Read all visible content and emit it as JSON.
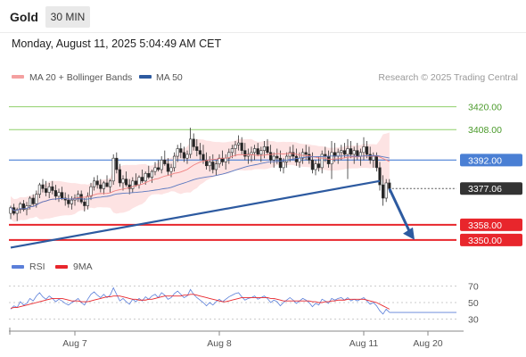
{
  "header": {
    "symbol": "Gold",
    "interval": "30 MIN",
    "datetime": "Monday, August 11, 2025 5:04:49 AM CET"
  },
  "legend": {
    "items": [
      {
        "label": "MA 20 + Bollinger Bands",
        "color": "#f4a0a0"
      },
      {
        "label": "MA 50",
        "color": "#2d5aa0"
      }
    ],
    "credit": "Research © 2025 Trading Central"
  },
  "colors": {
    "up": "#ffffff",
    "down": "#222222",
    "candle_outline": "#333333",
    "bollinger_fill": "#fde3e3",
    "ma20": "#f08080",
    "ma50": "#5a78c0",
    "trendline": "#2d5aa0",
    "resistance": "#8fcf6a",
    "pivot": "#4a7fd4",
    "support": "#e8262c",
    "arrow": "#2d5aa0",
    "rsi": "#5b7fd9",
    "rsi_ma": "#e8262c"
  },
  "chart_data": [
    {
      "type": "candlestick",
      "title": "Gold",
      "interval": "30 MIN",
      "ylim": [
        3342,
        3432
      ],
      "x_ticks": [
        {
          "label": "Aug 7",
          "index": 20
        },
        {
          "label": "Aug 8",
          "index": 65
        },
        {
          "label": "Aug 11",
          "index": 110
        },
        {
          "label": "Aug 20",
          "index": 130
        }
      ],
      "price_levels": [
        {
          "value": 3420.0,
          "label": "3420.00",
          "kind": "resistance"
        },
        {
          "value": 3408.0,
          "label": "3408.00",
          "kind": "resistance"
        },
        {
          "value": 3392.0,
          "label": "3392.00",
          "kind": "pivot"
        },
        {
          "value": 3377.06,
          "label": "3377.06",
          "kind": "last"
        },
        {
          "value": 3358.0,
          "label": "3358.00",
          "kind": "support"
        },
        {
          "value": 3350.0,
          "label": "3350.00",
          "kind": "support"
        }
      ],
      "trendline": {
        "from": {
          "index": 0,
          "value": 3346
        },
        "to": {
          "index": 115,
          "value": 3381
        }
      },
      "forecast_arrow": {
        "from": {
          "index": 118,
          "value": 3377
        },
        "to": {
          "index": 125,
          "value": 3351
        }
      },
      "candles": [
        [
          3364,
          3368,
          3361,
          3367
        ],
        [
          3367,
          3369,
          3363,
          3364
        ],
        [
          3364,
          3367,
          3360,
          3366
        ],
        [
          3366,
          3370,
          3364,
          3369
        ],
        [
          3369,
          3371,
          3365,
          3366
        ],
        [
          3366,
          3370,
          3363,
          3368
        ],
        [
          3368,
          3373,
          3366,
          3372
        ],
        [
          3372,
          3374,
          3368,
          3369
        ],
        [
          3369,
          3376,
          3367,
          3374
        ],
        [
          3374,
          3380,
          3372,
          3379
        ],
        [
          3379,
          3382,
          3375,
          3377
        ],
        [
          3377,
          3381,
          3373,
          3375
        ],
        [
          3375,
          3380,
          3372,
          3378
        ],
        [
          3378,
          3381,
          3374,
          3376
        ],
        [
          3376,
          3379,
          3371,
          3373
        ],
        [
          3373,
          3377,
          3370,
          3375
        ],
        [
          3375,
          3378,
          3371,
          3372
        ],
        [
          3372,
          3375,
          3368,
          3371
        ],
        [
          3371,
          3374,
          3367,
          3369
        ],
        [
          3369,
          3373,
          3366,
          3371
        ],
        [
          3371,
          3374,
          3368,
          3372
        ],
        [
          3372,
          3376,
          3370,
          3374
        ],
        [
          3374,
          3376,
          3369,
          3370
        ],
        [
          3370,
          3372,
          3365,
          3368
        ],
        [
          3368,
          3375,
          3366,
          3373
        ],
        [
          3373,
          3380,
          3371,
          3378
        ],
        [
          3378,
          3383,
          3376,
          3381
        ],
        [
          3381,
          3384,
          3377,
          3379
        ],
        [
          3379,
          3382,
          3375,
          3377
        ],
        [
          3377,
          3381,
          3374,
          3380
        ],
        [
          3380,
          3384,
          3378,
          3378
        ],
        [
          3378,
          3382,
          3375,
          3381
        ],
        [
          3381,
          3395,
          3379,
          3393
        ],
        [
          3393,
          3396,
          3385,
          3387
        ],
        [
          3387,
          3390,
          3378,
          3380
        ],
        [
          3380,
          3384,
          3376,
          3382
        ],
        [
          3382,
          3386,
          3378,
          3379
        ],
        [
          3379,
          3382,
          3374,
          3377
        ],
        [
          3377,
          3383,
          3375,
          3381
        ],
        [
          3381,
          3385,
          3378,
          3379
        ],
        [
          3379,
          3384,
          3377,
          3383
        ],
        [
          3383,
          3387,
          3380,
          3381
        ],
        [
          3381,
          3386,
          3379,
          3385
        ],
        [
          3385,
          3389,
          3382,
          3383
        ],
        [
          3383,
          3387,
          3380,
          3386
        ],
        [
          3386,
          3391,
          3384,
          3388
        ],
        [
          3388,
          3392,
          3386,
          3387
        ],
        [
          3387,
          3394,
          3385,
          3392
        ],
        [
          3392,
          3397,
          3389,
          3390
        ],
        [
          3390,
          3393,
          3384,
          3386
        ],
        [
          3386,
          3390,
          3383,
          3388
        ],
        [
          3388,
          3396,
          3386,
          3394
        ],
        [
          3394,
          3400,
          3391,
          3398
        ],
        [
          3398,
          3401,
          3393,
          3396
        ],
        [
          3396,
          3399,
          3391,
          3393
        ],
        [
          3393,
          3397,
          3390,
          3395
        ],
        [
          3395,
          3409,
          3393,
          3403
        ],
        [
          3403,
          3406,
          3397,
          3399
        ],
        [
          3399,
          3403,
          3394,
          3397
        ],
        [
          3397,
          3401,
          3392,
          3395
        ],
        [
          3395,
          3400,
          3390,
          3392
        ],
        [
          3392,
          3396,
          3387,
          3389
        ],
        [
          3389,
          3394,
          3386,
          3391
        ],
        [
          3391,
          3395,
          3385,
          3387
        ],
        [
          3387,
          3392,
          3384,
          3390
        ],
        [
          3390,
          3395,
          3388,
          3393
        ],
        [
          3393,
          3397,
          3389,
          3391
        ],
        [
          3391,
          3395,
          3387,
          3393
        ],
        [
          3393,
          3398,
          3390,
          3396
        ],
        [
          3396,
          3400,
          3393,
          3398
        ],
        [
          3398,
          3402,
          3394,
          3400
        ],
        [
          3400,
          3405,
          3397,
          3401
        ],
        [
          3401,
          3404,
          3395,
          3397
        ],
        [
          3397,
          3401,
          3392,
          3394
        ],
        [
          3394,
          3398,
          3390,
          3395
        ],
        [
          3395,
          3399,
          3391,
          3396
        ],
        [
          3396,
          3400,
          3392,
          3398
        ],
        [
          3398,
          3401,
          3394,
          3395
        ],
        [
          3395,
          3399,
          3391,
          3397
        ],
        [
          3397,
          3402,
          3393,
          3399
        ],
        [
          3399,
          3403,
          3395,
          3396
        ],
        [
          3396,
          3400,
          3390,
          3392
        ],
        [
          3392,
          3396,
          3388,
          3394
        ],
        [
          3394,
          3398,
          3390,
          3393
        ],
        [
          3393,
          3397,
          3386,
          3388
        ],
        [
          3388,
          3393,
          3385,
          3391
        ],
        [
          3391,
          3396,
          3388,
          3394
        ],
        [
          3394,
          3399,
          3391,
          3396
        ],
        [
          3396,
          3400,
          3392,
          3394
        ],
        [
          3394,
          3398,
          3389,
          3391
        ],
        [
          3391,
          3396,
          3388,
          3393
        ],
        [
          3393,
          3398,
          3390,
          3396
        ],
        [
          3396,
          3400,
          3392,
          3395
        ],
        [
          3395,
          3399,
          3390,
          3392
        ],
        [
          3392,
          3396,
          3385,
          3387
        ],
        [
          3387,
          3392,
          3384,
          3390
        ],
        [
          3390,
          3394,
          3386,
          3388
        ],
        [
          3388,
          3397,
          3385,
          3395
        ],
        [
          3395,
          3399,
          3391,
          3394
        ],
        [
          3394,
          3397,
          3388,
          3390
        ],
        [
          3390,
          3402,
          3382,
          3396
        ],
        [
          3396,
          3401,
          3391,
          3394
        ],
        [
          3394,
          3398,
          3390,
          3396
        ],
        [
          3396,
          3400,
          3392,
          3397
        ],
        [
          3397,
          3401,
          3393,
          3395
        ],
        [
          3395,
          3403,
          3382,
          3398
        ],
        [
          3398,
          3402,
          3393,
          3395
        ],
        [
          3395,
          3399,
          3390,
          3397
        ],
        [
          3397,
          3401,
          3392,
          3394
        ],
        [
          3394,
          3398,
          3389,
          3396
        ],
        [
          3396,
          3404,
          3392,
          3399
        ],
        [
          3399,
          3402,
          3393,
          3395
        ],
        [
          3395,
          3399,
          3390,
          3392
        ],
        [
          3392,
          3396,
          3388,
          3394
        ],
        [
          3394,
          3396,
          3386,
          3388
        ],
        [
          3388,
          3391,
          3376,
          3379
        ],
        [
          3379,
          3384,
          3368,
          3372
        ],
        [
          3372,
          3382,
          3370,
          3380
        ],
        [
          3380,
          3382,
          3375,
          3377
        ]
      ]
    },
    {
      "type": "line",
      "title": "RSI",
      "ylim": [
        25,
        75
      ],
      "y_ticks": [
        70,
        50,
        30
      ],
      "legend": [
        {
          "label": "RSI"
        },
        {
          "label": "9MA"
        }
      ],
      "series": [
        {
          "name": "RSI",
          "values": [
            42,
            46,
            44,
            51,
            47,
            49,
            55,
            52,
            58,
            62,
            57,
            54,
            58,
            55,
            51,
            54,
            52,
            49,
            47,
            50,
            52,
            55,
            50,
            47,
            54,
            60,
            63,
            59,
            56,
            60,
            56,
            59,
            68,
            60,
            52,
            55,
            51,
            48,
            54,
            51,
            55,
            52,
            57,
            54,
            58,
            60,
            56,
            62,
            59,
            54,
            56,
            61,
            64,
            60,
            56,
            58,
            66,
            60,
            56,
            53,
            50,
            46,
            50,
            47,
            51,
            54,
            51,
            54,
            57,
            59,
            61,
            62,
            57,
            53,
            55,
            56,
            58,
            54,
            56,
            58,
            55,
            50,
            53,
            51,
            46,
            50,
            53,
            56,
            53,
            49,
            52,
            55,
            53,
            50,
            45,
            49,
            47,
            54,
            52,
            49,
            55,
            53,
            55,
            56,
            53,
            56,
            52,
            54,
            52,
            54,
            56,
            52,
            48,
            50,
            46,
            40,
            36,
            42,
            38
          ]
        },
        {
          "name": "9MA",
          "values": [
            43,
            44,
            44,
            45,
            46,
            47,
            48,
            49,
            50,
            51,
            52,
            53,
            54,
            55,
            55,
            55,
            55,
            54,
            53,
            52,
            52,
            52,
            51,
            51,
            51,
            52,
            53,
            54,
            55,
            56,
            57,
            57,
            58,
            58,
            58,
            57,
            56,
            55,
            54,
            54,
            53,
            53,
            53,
            54,
            54,
            55,
            56,
            57,
            58,
            58,
            58,
            58,
            58,
            58,
            59,
            59,
            60,
            60,
            59,
            58,
            57,
            56,
            55,
            54,
            53,
            52,
            51,
            51,
            52,
            53,
            54,
            55,
            56,
            56,
            56,
            56,
            56,
            56,
            56,
            56,
            56,
            55,
            55,
            54,
            53,
            52,
            52,
            52,
            52,
            52,
            52,
            52,
            52,
            52,
            51,
            51,
            50,
            50,
            51,
            51,
            52,
            52,
            53,
            53,
            53,
            54,
            54,
            54,
            54,
            54,
            54,
            53,
            52,
            51,
            50,
            48,
            46,
            44,
            42
          ]
        }
      ]
    }
  ]
}
